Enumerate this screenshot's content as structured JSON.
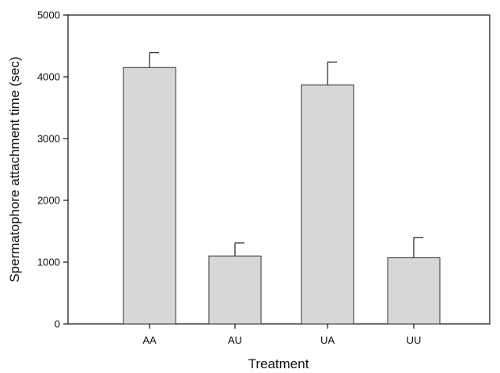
{
  "chart_data": {
    "type": "bar",
    "title": "",
    "xlabel": "Treatment",
    "ylabel": "Spermatophore attachment time (sec)",
    "categories": [
      "AA",
      "AU",
      "UA",
      "UU"
    ],
    "values": [
      4150,
      1100,
      3870,
      1070
    ],
    "error_upper": [
      4390,
      1310,
      4240,
      1400
    ],
    "ylim": [
      0,
      5000
    ],
    "yticks": [
      0,
      1000,
      2000,
      3000,
      4000,
      5000
    ],
    "grid": false,
    "bar_color": "#d7d7d7",
    "bar_edge_color": "#333333"
  }
}
